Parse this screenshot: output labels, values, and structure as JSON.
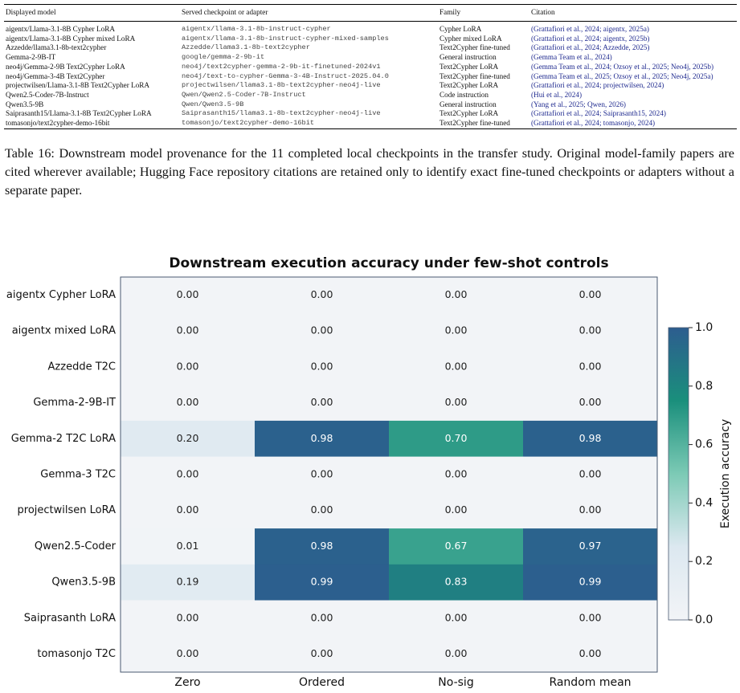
{
  "table": {
    "header": [
      "Displayed model",
      "Served checkpoint or adapter",
      "Family",
      "Citation"
    ],
    "rows": [
      [
        "aigentx/Llama-3.1-8B Cypher LoRA",
        "aigentx/llama-3.1-8b-instruct-cypher",
        "Cypher LoRA",
        "(Grattafiori et al., 2024; aigentx, 2025a)"
      ],
      [
        "aigentx/Llama-3.1-8B Cypher mixed LoRA",
        "aigentx/llama-3.1-8b-instruct-cypher-mixed-samples",
        "Cypher mixed LoRA",
        "(Grattafiori et al., 2024; aigentx, 2025b)"
      ],
      [
        "Azzedde/llama3.1-8b-text2cypher",
        "Azzedde/llama3.1-8b-text2cypher",
        "Text2Cypher fine-tuned",
        "(Grattafiori et al., 2024; Azzedde, 2025)"
      ],
      [
        "Gemma-2-9B-IT",
        "google/gemma-2-9b-it",
        "General instruction",
        "(Gemma Team et al., 2024)"
      ],
      [
        "neo4j/Gemma-2-9B Text2Cypher LoRA",
        "neo4j/text2cypher-gemma-2-9b-it-finetuned-2024v1",
        "Text2Cypher LoRA",
        "(Gemma Team et al., 2024; Ozsoy et al., 2025; Neo4j, 2025b)"
      ],
      [
        "neo4j/Gemma-3-4B Text2Cypher",
        "neo4j/text-to-cypher-Gemma-3-4B-Instruct-2025.04.0",
        "Text2Cypher fine-tuned",
        "(Gemma Team et al., 2025; Ozsoy et al., 2025; Neo4j, 2025a)"
      ],
      [
        "projectwilsen/Llama-3.1-8B Text2Cypher LoRA",
        "projectwilsen/llama3.1-8b-text2cypher-neo4j-live",
        "Text2Cypher LoRA",
        "(Grattafiori et al., 2024; projectwilsen, 2024)"
      ],
      [
        "Qwen2.5-Coder-7B-Instruct",
        "Qwen/Qwen2.5-Coder-7B-Instruct",
        "Code instruction",
        "(Hui et al., 2024)"
      ],
      [
        "Qwen3.5-9B",
        "Qwen/Qwen3.5-9B",
        "General instruction",
        "(Yang et al., 2025; Qwen, 2026)"
      ],
      [
        "Saiprasanth15/Llama-3.1-8B Text2Cypher LoRA",
        "Saiprasanth15/llama3.1-8b-text2cypher-neo4j-live",
        "Text2Cypher LoRA",
        "(Grattafiori et al., 2024; Saiprasanth15, 2024)"
      ],
      [
        "tomasonjo/text2cypher-demo-16bit",
        "tomasonjo/text2cypher-demo-16bit",
        "Text2Cypher fine-tuned",
        "(Grattafiori et al., 2024; tomasonjo, 2024)"
      ]
    ]
  },
  "caption": "Table 16: Downstream model provenance for the 11 completed local checkpoints in the transfer study. Original model-family papers are cited wherever available; Hugging Face repository citations are retained only to identify exact fine-tuned checkpoints or adapters without a separate paper.",
  "chart_data": {
    "type": "heatmap",
    "title": "Downstream execution accuracy under few-shot controls",
    "x_categories": [
      "Zero",
      "Ordered",
      "No-sig",
      "Random mean"
    ],
    "y_categories": [
      "aigentx Cypher LoRA",
      "aigentx mixed LoRA",
      "Azzedde T2C",
      "Gemma-2-9B-IT",
      "Gemma-2 T2C LoRA",
      "Gemma-3 T2C",
      "projectwilsen LoRA",
      "Qwen2.5-Coder",
      "Qwen3.5-9B",
      "Saiprasanth LoRA",
      "tomasonjo T2C"
    ],
    "values": [
      [
        0,
        0,
        0,
        0
      ],
      [
        0,
        0,
        0,
        0
      ],
      [
        0,
        0,
        0,
        0
      ],
      [
        0,
        0,
        0,
        0
      ],
      [
        0.2,
        0.98,
        0.7,
        0.98
      ],
      [
        0,
        0,
        0,
        0
      ],
      [
        0,
        0,
        0,
        0
      ],
      [
        0.01,
        0.98,
        0.67,
        0.97
      ],
      [
        0.19,
        0.99,
        0.83,
        0.99
      ],
      [
        0,
        0,
        0,
        0
      ],
      [
        0,
        0,
        0,
        0
      ]
    ],
    "value_labels": [
      [
        "0.00",
        "0.00",
        "0.00",
        "0.00"
      ],
      [
        "0.00",
        "0.00",
        "0.00",
        "0.00"
      ],
      [
        "0.00",
        "0.00",
        "0.00",
        "0.00"
      ],
      [
        "0.00",
        "0.00",
        "0.00",
        "0.00"
      ],
      [
        "0.20",
        "0.98",
        "0.70",
        "0.98"
      ],
      [
        "0.00",
        "0.00",
        "0.00",
        "0.00"
      ],
      [
        "0.00",
        "0.00",
        "0.00",
        "0.00"
      ],
      [
        "0.01",
        "0.98",
        "0.67",
        "0.97"
      ],
      [
        "0.19",
        "0.99",
        "0.83",
        "0.99"
      ],
      [
        "0.00",
        "0.00",
        "0.00",
        "0.00"
      ],
      [
        "0.00",
        "0.00",
        "0.00",
        "0.00"
      ]
    ],
    "clim": [
      0,
      1
    ],
    "colormap": [
      "#f2f4f7",
      "#dce8f0",
      "#7ccab5",
      "#1a8f7c",
      "#2d5d8f"
    ],
    "colorbar_label": "Execution accuracy",
    "colorbar_ticks": [
      {
        "value": 0,
        "label": "0.0"
      },
      {
        "value": 0.2,
        "label": "0.2"
      },
      {
        "value": 0.4,
        "label": "0.4"
      },
      {
        "value": 0.6,
        "label": "0.6"
      },
      {
        "value": 0.8,
        "label": "0.8"
      },
      {
        "value": 1,
        "label": "1.0"
      }
    ]
  }
}
